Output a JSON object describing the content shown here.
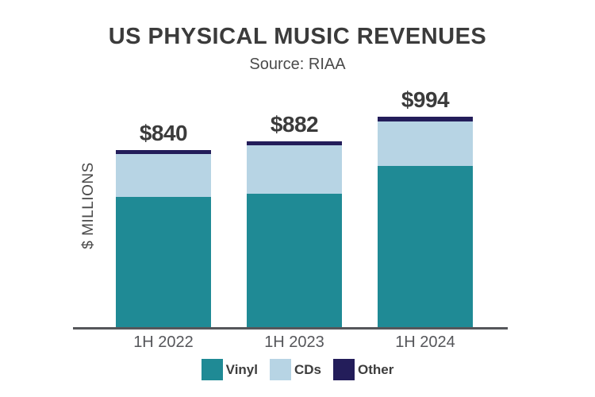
{
  "title": "US PHYSICAL MUSIC REVENUES",
  "subtitle": "Source: RIAA",
  "ylabel": "$ MILLIONS",
  "colors": {
    "vinyl": "#1f8a95",
    "cds": "#b7d4e4",
    "other": "#231d5a",
    "axis": "#55565a",
    "text": "#3b3b3b"
  },
  "chart_data": {
    "type": "bar",
    "stacked": true,
    "title": "US PHYSICAL MUSIC REVENUES",
    "subtitle": "Source: RIAA",
    "xlabel": "",
    "ylabel": "$ MILLIONS",
    "units": "$ millions",
    "grid": false,
    "legend_position": "bottom",
    "categories": [
      "1H 2022",
      "1H 2023",
      "1H 2024"
    ],
    "totals": [
      840,
      882,
      994
    ],
    "total_labels": [
      "$840",
      "$882",
      "$994"
    ],
    "series": [
      {
        "name": "Vinyl",
        "color": "#1f8a95",
        "values": [
          620,
          635,
          765
        ]
      },
      {
        "name": "CDs",
        "color": "#b7d4e4",
        "values": [
          200,
          227,
          207
        ]
      },
      {
        "name": "Other",
        "color": "#231d5a",
        "values": [
          20,
          20,
          22
        ]
      }
    ]
  }
}
